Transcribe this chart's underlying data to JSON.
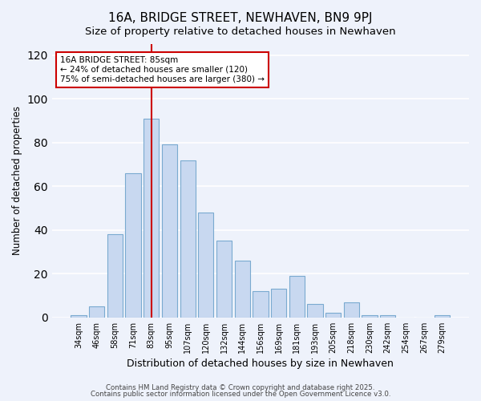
{
  "title": "16A, BRIDGE STREET, NEWHAVEN, BN9 9PJ",
  "subtitle": "Size of property relative to detached houses in Newhaven",
  "xlabel": "Distribution of detached houses by size in Newhaven",
  "ylabel": "Number of detached properties",
  "bar_labels": [
    "34sqm",
    "46sqm",
    "58sqm",
    "71sqm",
    "83sqm",
    "95sqm",
    "107sqm",
    "120sqm",
    "132sqm",
    "144sqm",
    "156sqm",
    "169sqm",
    "181sqm",
    "193sqm",
    "205sqm",
    "218sqm",
    "230sqm",
    "242sqm",
    "254sqm",
    "267sqm",
    "279sqm"
  ],
  "bar_values": [
    1,
    5,
    38,
    66,
    91,
    79,
    72,
    48,
    35,
    26,
    12,
    13,
    19,
    6,
    2,
    7,
    1,
    1,
    0,
    0,
    1
  ],
  "bar_color": "#c8d8f0",
  "bar_edge_color": "#7aaad0",
  "vline_x": 4,
  "vline_color": "#cc0000",
  "annotation_title": "16A BRIDGE STREET: 85sqm",
  "annotation_line1": "← 24% of detached houses are smaller (120)",
  "annotation_line2": "75% of semi-detached houses are larger (380) →",
  "annotation_box_color": "#ffffff",
  "annotation_box_edge": "#cc0000",
  "ylim": [
    0,
    125
  ],
  "yticks": [
    0,
    20,
    40,
    60,
    80,
    100,
    120
  ],
  "footer1": "Contains HM Land Registry data © Crown copyright and database right 2025.",
  "footer2": "Contains public sector information licensed under the Open Government Licence v3.0.",
  "bg_color": "#eef2fb",
  "plot_bg_color": "#eef2fb",
  "grid_color": "#ffffff",
  "title_fontsize": 11,
  "subtitle_fontsize": 9.5,
  "xlabel_fontsize": 9,
  "ylabel_fontsize": 8.5
}
